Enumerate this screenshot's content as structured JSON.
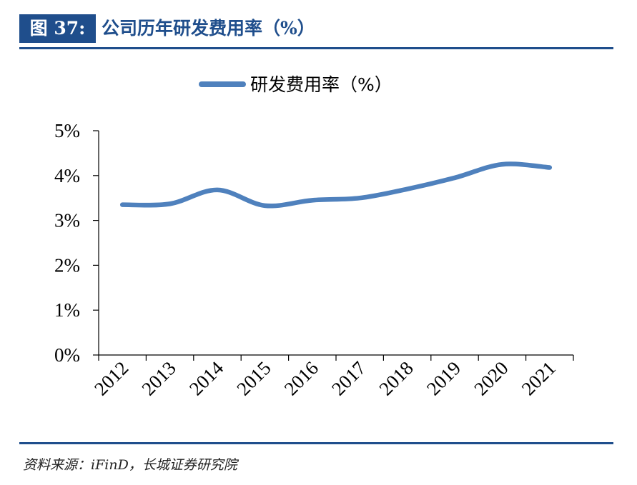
{
  "header": {
    "figure_label": "图 37:",
    "title": "公司历年研发费用率（%）"
  },
  "source": "资料来源：iFinD，长城证券研究院",
  "colors": {
    "accent": "#1f4e8c",
    "series": "#4f81bd"
  },
  "chart_data": {
    "type": "line",
    "title": "",
    "xlabel": "",
    "ylabel": "",
    "categories": [
      "2012",
      "2013",
      "2014",
      "2015",
      "2016",
      "2017",
      "2018",
      "2019",
      "2020",
      "2021"
    ],
    "series": [
      {
        "name": "研发费用率（%）",
        "values": [
          3.35,
          3.37,
          3.68,
          3.33,
          3.45,
          3.5,
          3.7,
          3.95,
          4.25,
          4.18
        ],
        "smooth": true
      }
    ],
    "ylim": [
      0,
      5
    ],
    "yticks": [
      "0%",
      "1%",
      "2%",
      "3%",
      "4%",
      "5%"
    ],
    "grid": false,
    "legend_position": "top"
  }
}
